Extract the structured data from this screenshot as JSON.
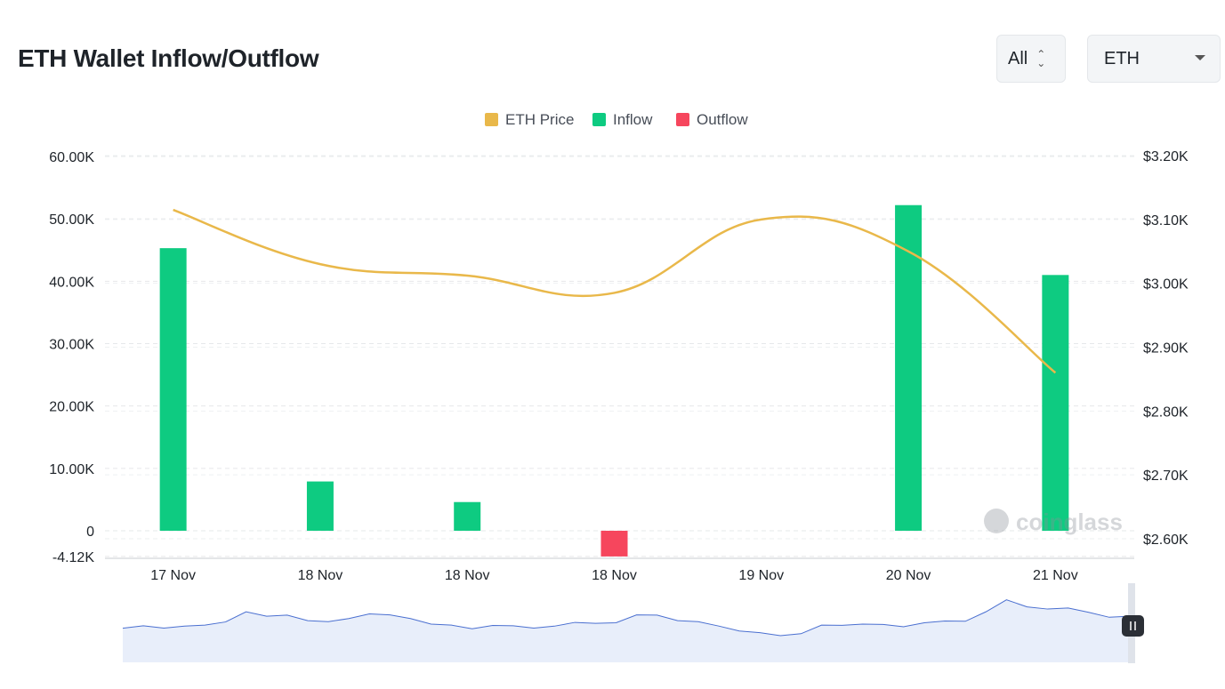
{
  "header": {
    "title": "ETH Wallet Inflow/Outflow",
    "range_value": "All",
    "coin_value": "ETH"
  },
  "legend": [
    {
      "label": "ETH Price",
      "color": "#e9b84a"
    },
    {
      "label": "Inflow",
      "color": "#0ecb81"
    },
    {
      "label": "Outflow",
      "color": "#f6465d"
    }
  ],
  "watermark": "coinglass",
  "chart_data": {
    "type": "bar",
    "categories": [
      "17 Nov",
      "18 Nov",
      "18 Nov",
      "18 Nov",
      "19 Nov",
      "20 Nov",
      "21 Nov"
    ],
    "series": [
      {
        "name": "Inflow",
        "type": "bar",
        "color": "#0ecb81",
        "values": [
          45300,
          7900,
          4600,
          0,
          0,
          52200,
          41000
        ]
      },
      {
        "name": "Outflow",
        "type": "bar",
        "color": "#f6465d",
        "values": [
          0,
          0,
          0,
          -4120,
          0,
          0,
          0
        ]
      },
      {
        "name": "ETH Price",
        "type": "line",
        "axis": "right",
        "color": "#e9b84a",
        "values": [
          3115,
          3030,
          3012,
          2985,
          3100,
          3050,
          2860
        ]
      }
    ],
    "y_left": {
      "ticks": [
        "60.00K",
        "50.00K",
        "40.00K",
        "30.00K",
        "20.00K",
        "10.00K",
        "0",
        "-4.12K"
      ],
      "range": [
        -4120,
        60000
      ]
    },
    "y_right": {
      "ticks": [
        "$3.20K",
        "$3.10K",
        "$3.00K",
        "$2.90K",
        "$2.80K",
        "$2.70K",
        "$2.60K"
      ],
      "range": [
        2600,
        3200
      ]
    },
    "grid": true,
    "legend_position": "top-center"
  },
  "navigator": {
    "values": [
      42,
      44,
      43,
      47,
      45,
      52,
      68,
      58,
      62,
      55,
      50,
      57,
      65,
      60,
      57,
      50,
      45,
      42,
      48,
      44,
      43,
      47,
      49,
      50,
      52,
      60,
      62,
      55,
      50,
      46,
      40,
      34,
      32,
      36,
      45,
      47,
      50,
      46,
      45,
      52,
      51,
      53,
      68,
      82,
      74,
      72,
      70,
      66,
      60,
      58
    ]
  }
}
